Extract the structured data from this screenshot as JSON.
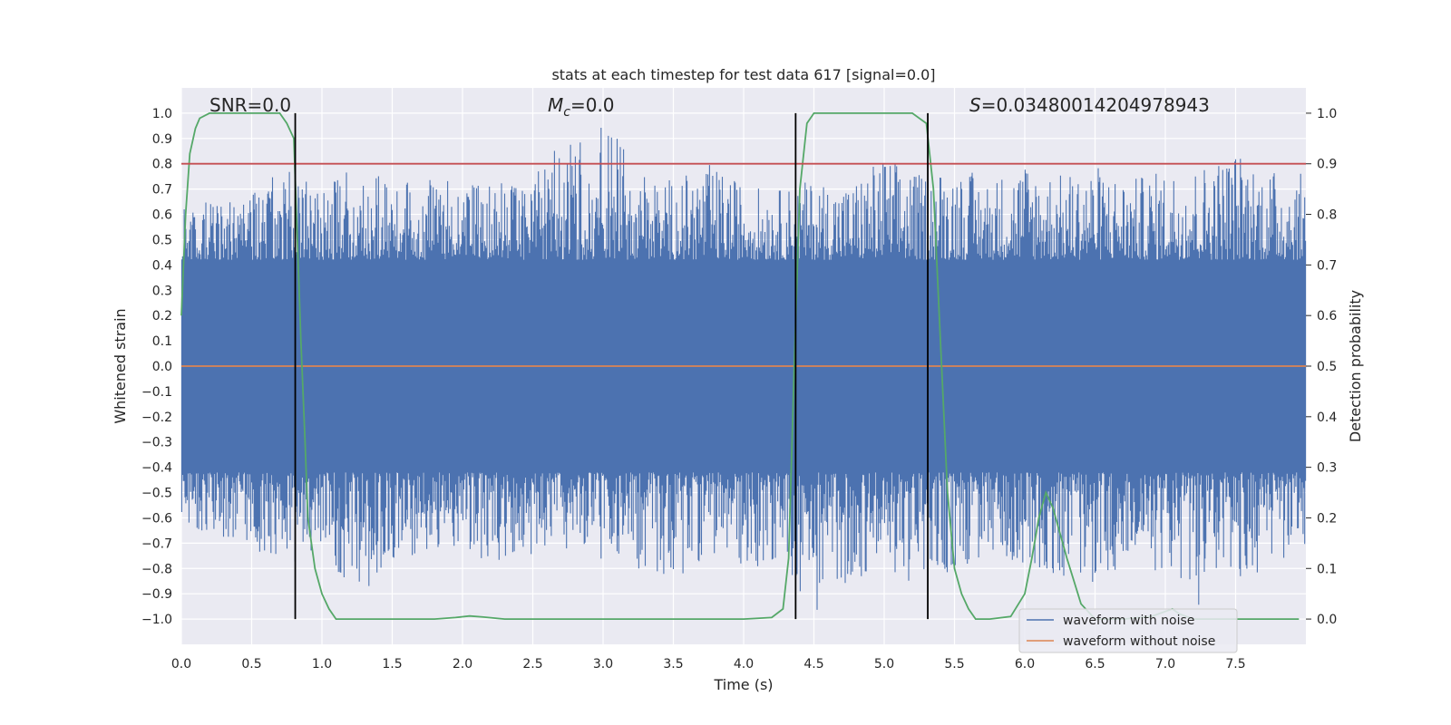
{
  "chart_data": {
    "type": "line",
    "title": "stats at each timestep for test data 617 [signal=0.0]",
    "xlabel": "Time (s)",
    "ylabel": "Whitened strain",
    "y2label": "Detection probability",
    "xlim": [
      0.0,
      8.0
    ],
    "ylim": [
      -1.1,
      1.1
    ],
    "y2lim": [
      -0.05,
      1.05
    ],
    "grid": true,
    "x_ticks": [
      "0.0",
      "0.5",
      "1.0",
      "1.5",
      "2.0",
      "2.5",
      "3.0",
      "3.5",
      "4.0",
      "4.5",
      "5.0",
      "5.5",
      "6.0",
      "6.5",
      "7.0",
      "7.5"
    ],
    "x_tick_values": [
      0.0,
      0.5,
      1.0,
      1.5,
      2.0,
      2.5,
      3.0,
      3.5,
      4.0,
      4.5,
      5.0,
      5.5,
      6.0,
      6.5,
      7.0,
      7.5
    ],
    "y_ticks": [
      "1.0",
      "0.9",
      "0.8",
      "0.7",
      "0.6",
      "0.5",
      "0.4",
      "0.3",
      "0.2",
      "0.1",
      "0.0",
      "−0.1",
      "−0.2",
      "−0.3",
      "−0.4",
      "−0.5",
      "−0.6",
      "−0.7",
      "−0.8",
      "−0.9",
      "−1.0"
    ],
    "y_tick_values": [
      1.0,
      0.9,
      0.8,
      0.7,
      0.6,
      0.5,
      0.4,
      0.3,
      0.2,
      0.1,
      0.0,
      -0.1,
      -0.2,
      -0.3,
      -0.4,
      -0.5,
      -0.6,
      -0.7,
      -0.8,
      -0.9,
      -1.0
    ],
    "y2_ticks": [
      "1.0",
      "0.9",
      "0.8",
      "0.7",
      "0.6",
      "0.5",
      "0.4",
      "0.3",
      "0.2",
      "0.1",
      "0.0"
    ],
    "y2_tick_values": [
      1.0,
      0.9,
      0.8,
      0.7,
      0.6,
      0.5,
      0.4,
      0.3,
      0.2,
      0.1,
      0.0
    ],
    "annotations": {
      "snr": "SNR=0.0",
      "mc_symbol": "M",
      "mc_subscript": "c",
      "mc_value": "=0.0",
      "s_symbol": "S",
      "s_value": "=0.03480014204978943"
    },
    "legend": {
      "placement": "lower-right",
      "entries": [
        "waveform with noise",
        "waveform without noise"
      ]
    },
    "series": [
      {
        "name": "waveform with noise",
        "color": "#4c72b0",
        "band_envelope": {
          "x": [
            0.0,
            0.25,
            0.5,
            0.75,
            1.0,
            1.25,
            1.5,
            1.75,
            2.0,
            2.25,
            2.5,
            2.75,
            3.0,
            3.25,
            3.5,
            3.75,
            4.0,
            4.25,
            4.5,
            4.75,
            5.0,
            5.25,
            5.5,
            5.75,
            6.0,
            6.25,
            6.5,
            6.75,
            7.0,
            7.25,
            7.5,
            7.75,
            8.0
          ],
          "upper": [
            0.62,
            0.66,
            0.7,
            0.78,
            0.7,
            0.8,
            0.72,
            0.74,
            0.76,
            0.72,
            0.76,
            0.92,
            0.98,
            0.78,
            0.74,
            0.8,
            0.72,
            0.7,
            0.74,
            0.72,
            0.84,
            0.76,
            0.8,
            0.74,
            0.82,
            0.76,
            0.8,
            0.74,
            0.78,
            0.8,
            0.86,
            0.78,
            0.76
          ],
          "lower": [
            -0.62,
            -0.68,
            -0.72,
            -0.8,
            -0.72,
            -0.94,
            -0.76,
            -0.74,
            -0.72,
            -0.8,
            -0.76,
            -0.74,
            -0.78,
            -0.8,
            -0.86,
            -0.74,
            -0.8,
            -0.78,
            -0.98,
            -0.86,
            -0.8,
            -0.88,
            -0.82,
            -0.76,
            -0.78,
            -0.84,
            -0.86,
            -0.8,
            -0.82,
            -0.96,
            -0.86,
            -0.8,
            -0.72
          ],
          "core": 0.42
        }
      },
      {
        "name": "waveform without noise",
        "color": "#dd8452",
        "x": [
          0.0,
          8.0
        ],
        "y": [
          0.0,
          0.0
        ]
      },
      {
        "name": "detection probability",
        "color": "#55a868",
        "axis": "right",
        "x": [
          0.0,
          0.03,
          0.06,
          0.1,
          0.13,
          0.2,
          0.3,
          0.4,
          0.5,
          0.6,
          0.7,
          0.75,
          0.8,
          0.85,
          0.88,
          0.9,
          0.95,
          1.0,
          1.05,
          1.1,
          1.2,
          1.5,
          1.8,
          1.95,
          2.05,
          2.15,
          2.3,
          2.6,
          3.0,
          3.5,
          4.0,
          4.2,
          4.28,
          4.32,
          4.36,
          4.4,
          4.45,
          4.5,
          4.6,
          4.8,
          5.0,
          5.2,
          5.3,
          5.35,
          5.4,
          5.45,
          5.5,
          5.55,
          5.6,
          5.65,
          5.75,
          5.9,
          6.0,
          6.05,
          6.1,
          6.15,
          6.2,
          6.3,
          6.4,
          6.5,
          6.7,
          6.9,
          7.0,
          7.05,
          7.1,
          7.2,
          7.4,
          7.7,
          7.95
        ],
        "y": [
          0.6,
          0.8,
          0.92,
          0.97,
          0.99,
          1.0,
          1.0,
          1.0,
          1.0,
          1.0,
          1.0,
          0.98,
          0.95,
          0.55,
          0.35,
          0.2,
          0.1,
          0.05,
          0.02,
          0.0,
          0.0,
          0.0,
          0.0,
          0.003,
          0.006,
          0.004,
          0.0,
          0.0,
          0.0,
          0.0,
          0.0,
          0.003,
          0.02,
          0.12,
          0.5,
          0.85,
          0.98,
          1.0,
          1.0,
          1.0,
          1.0,
          1.0,
          0.98,
          0.85,
          0.55,
          0.25,
          0.1,
          0.05,
          0.02,
          0.0,
          0.0,
          0.005,
          0.05,
          0.12,
          0.2,
          0.25,
          0.22,
          0.12,
          0.03,
          0.0,
          0.0,
          0.005,
          0.015,
          0.02,
          0.01,
          0.0,
          0.0,
          0.0,
          0.0
        ]
      },
      {
        "name": "threshold",
        "color": "#c44e52",
        "axis": "right",
        "x": [
          0.0,
          8.0
        ],
        "y": [
          0.9,
          0.9
        ]
      }
    ],
    "vlines": {
      "color": "#000000",
      "x": [
        0.81,
        4.37,
        5.31
      ],
      "ymin": -1.0,
      "ymax": 1.0
    }
  }
}
